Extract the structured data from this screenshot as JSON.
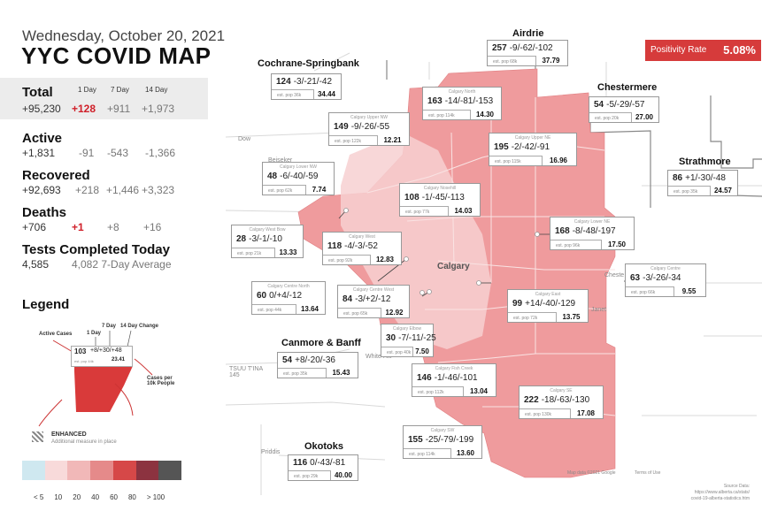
{
  "date": "Wednesday, October 20, 2021",
  "title": "YYC COVID MAP",
  "headers": {
    "d1": "1 Day",
    "d7": "7 Day",
    "d14": "14 Day"
  },
  "total": {
    "label": "Total",
    "value": "+95,230",
    "d1": "+128",
    "d7": "+911",
    "d14": "+1,973"
  },
  "active": {
    "label": "Active",
    "value": "+1,831",
    "d1": "-91",
    "d7": "-543",
    "d14": "-1,366"
  },
  "recovered": {
    "label": "Recovered",
    "value": "+92,693",
    "d1": "+218",
    "d7": "+1,446",
    "d14": "+3,323"
  },
  "deaths": {
    "label": "Deaths",
    "value": "+706",
    "d1": "+1",
    "d7": "+8",
    "d14": "+16"
  },
  "tests": {
    "label": "Tests Completed Today",
    "value": "4,585",
    "avg": "4,082 7-Day Average"
  },
  "legend": {
    "title": "Legend",
    "active_cases": "Active Cases",
    "one_day": "1 Day",
    "seven_day": "7 Day",
    "fourteen_day_change": "14 Day Change",
    "sample_cases": "103",
    "sample_change": "+8/+30/+48",
    "sample_pop": "est. pop 44k",
    "sample_rate": "23.41",
    "cases_per_10k": "Cases per 10k People",
    "enhanced": "ENHANCED",
    "enhanced_sub": "Additional measure in place",
    "scale_labels": [
      "< 5",
      "10",
      "20",
      "40",
      "60",
      "80",
      "> 100"
    ],
    "scale_colors": [
      "#cfe8f0",
      "#f8dada",
      "#f1b8b8",
      "#e58a8a",
      "#d64848",
      "#8c3340",
      "#555555"
    ]
  },
  "positivity": {
    "label": "Positivity Rate",
    "value": "5.08%"
  },
  "cities": {
    "airdrie": "Airdrie",
    "cochrane": "Cochrane-Springbank",
    "chestermere": "Chestermere",
    "strathmore": "Strathmore",
    "canmore": "Canmore & Banff",
    "okotoks": "Okotoks"
  },
  "places": {
    "calgary": "Calgary",
    "beiseker": "Beiseker",
    "chestermere_town": "Cheste",
    "janet": "Janet",
    "white_hill": "White Hill",
    "priddis": "Priddis",
    "tsuutina": "TSUU T'INA 145",
    "dow": "Dow"
  },
  "annotations": [
    {
      "id": "airdrie",
      "name": "",
      "cases": "257",
      "change": "-9/-62/-102",
      "pop": "est. pop 68k",
      "rate": "37.79"
    },
    {
      "id": "cochrane",
      "name": "",
      "cases": "124",
      "change": "-3/-21/-42",
      "pop": "est. pop 36k",
      "rate": "34.44"
    },
    {
      "id": "chestermere",
      "name": "",
      "cases": "54",
      "change": "-5/-29/-57",
      "pop": "est. pop 20k",
      "rate": "27.00"
    },
    {
      "id": "strathmore",
      "name": "",
      "cases": "86",
      "change": "+1/-30/-48",
      "pop": "est. pop 35k",
      "rate": "24.57"
    },
    {
      "id": "canmore",
      "name": "",
      "cases": "54",
      "change": "+8/-20/-36",
      "pop": "est. pop 35k",
      "rate": "15.43"
    },
    {
      "id": "okotoks",
      "name": "",
      "cases": "116",
      "change": "0/-43/-81",
      "pop": "est. pop 29k",
      "rate": "40.00"
    },
    {
      "id": "north",
      "name": "Calgary North",
      "cases": "163",
      "change": "-14/-81/-153",
      "pop": "est. pop 114k",
      "rate": "14.30"
    },
    {
      "id": "upper-nw",
      "name": "Calgary Upper NW",
      "cases": "149",
      "change": "-9/-26/-55",
      "pop": "est. pop 122k",
      "rate": "12.21"
    },
    {
      "id": "upper-ne",
      "name": "Calgary Upper NE",
      "cases": "195",
      "change": "-2/-42/-91",
      "pop": "est. pop 115k",
      "rate": "16.96"
    },
    {
      "id": "lower-nw",
      "name": "Calgary Lower NW",
      "cases": "48",
      "change": "-6/-40/-59",
      "pop": "est. pop 62k",
      "rate": "7.74"
    },
    {
      "id": "nose-hill",
      "name": "Calgary Nosehill",
      "cases": "108",
      "change": "-1/-45/-113",
      "pop": "est. pop 77k",
      "rate": "14.03"
    },
    {
      "id": "lower-ne",
      "name": "Calgary Lower NE",
      "cases": "168",
      "change": "-8/-48/-197",
      "pop": "est. pop 96k",
      "rate": "17.50"
    },
    {
      "id": "west-bow",
      "name": "Calgary West Bow",
      "cases": "28",
      "change": "-3/-1/-10",
      "pop": "est. pop 21k",
      "rate": "13.33"
    },
    {
      "id": "west",
      "name": "Calgary West",
      "cases": "118",
      "change": "-4/-3/-52",
      "pop": "est. pop 92k",
      "rate": "12.83"
    },
    {
      "id": "centre",
      "name": "Calgary Centre",
      "cases": "63",
      "change": "-3/-26/-34",
      "pop": "est. pop 66k",
      "rate": "9.55"
    },
    {
      "id": "centre-north",
      "name": "Calgary Centre North",
      "cases": "60",
      "change": "0/+4/-12",
      "pop": "est. pop 44k",
      "rate": "13.64"
    },
    {
      "id": "centre-west",
      "name": "Calgary Centre West",
      "cases": "84",
      "change": "-3/+2/-12",
      "pop": "est. pop 65k",
      "rate": "12.92"
    },
    {
      "id": "east",
      "name": "Calgary East",
      "cases": "99",
      "change": "+14/-40/-129",
      "pop": "est. pop 72k",
      "rate": "13.75"
    },
    {
      "id": "elbow",
      "name": "Calgary Elbow",
      "cases": "30",
      "change": "-7/-11/-25",
      "pop": "est. pop 40k",
      "rate": "7.50"
    },
    {
      "id": "fish-creek",
      "name": "Calgary Fish Creek",
      "cases": "146",
      "change": "-1/-46/-101",
      "pop": "est. pop 112k",
      "rate": "13.04"
    },
    {
      "id": "se",
      "name": "Calgary SE",
      "cases": "222",
      "change": "-18/-63/-130",
      "pop": "est. pop 130k",
      "rate": "17.08"
    },
    {
      "id": "sw",
      "name": "Calgary SW",
      "cases": "155",
      "change": "-25/-79/-199",
      "pop": "est. pop 114k",
      "rate": "13.60"
    }
  ],
  "map_credits": {
    "data": "Map data ©2021 Google",
    "terms": "Terms of Use"
  },
  "source": {
    "label": "Source Data:",
    "url1": "https://www.alberta.ca/stats/",
    "url2": "covid-19-alberta-statistics.htm"
  },
  "colors": {
    "region_fill": "#ef9b9d",
    "region_light": "#f7d0d1",
    "accent": "#d63b3b",
    "increase": "#d0202a"
  }
}
